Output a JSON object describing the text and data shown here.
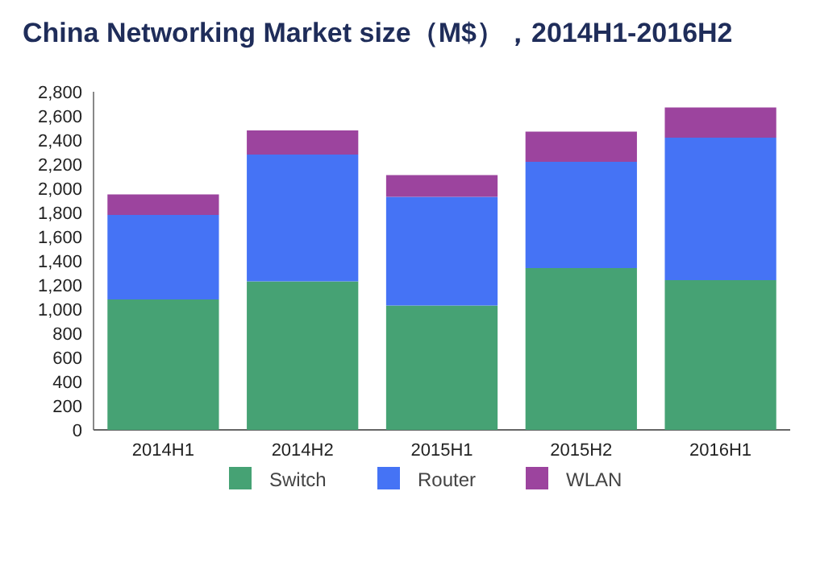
{
  "chart_data": {
    "type": "bar",
    "title": "China Networking Market size（M$），2014H1-2016H2",
    "categories": [
      "2014H1",
      "2014H2",
      "2015H1",
      "2015H2",
      "2016H1"
    ],
    "stacked": true,
    "series": [
      {
        "name": "Switch",
        "color": "#46a274",
        "values": [
          1080,
          1230,
          1030,
          1340,
          1240
        ]
      },
      {
        "name": "Router",
        "color": "#4573f5",
        "values": [
          700,
          1050,
          900,
          880,
          1180
        ]
      },
      {
        "name": "WLAN",
        "color": "#9c449e",
        "values": [
          170,
          200,
          180,
          250,
          250
        ]
      }
    ],
    "ylim": [
      0,
      2800
    ],
    "yticks": [
      {
        "value": 0,
        "label": "0"
      },
      {
        "value": 200,
        "label": "200"
      },
      {
        "value": 400,
        "label": "400"
      },
      {
        "value": 600,
        "label": "600"
      },
      {
        "value": 800,
        "label": "800"
      },
      {
        "value": 1000,
        "label": "1,000"
      },
      {
        "value": 1200,
        "label": "1,200"
      },
      {
        "value": 1400,
        "label": "1,400"
      },
      {
        "value": 1600,
        "label": "1,600"
      },
      {
        "value": 1800,
        "label": "1,800"
      },
      {
        "value": 2000,
        "label": "2,000"
      },
      {
        "value": 2200,
        "label": "2,200"
      },
      {
        "value": 2400,
        "label": "2,400"
      },
      {
        "value": 2600,
        "label": "2,600"
      },
      {
        "value": 2800,
        "label": "2,800"
      }
    ],
    "legend": "bottom"
  }
}
